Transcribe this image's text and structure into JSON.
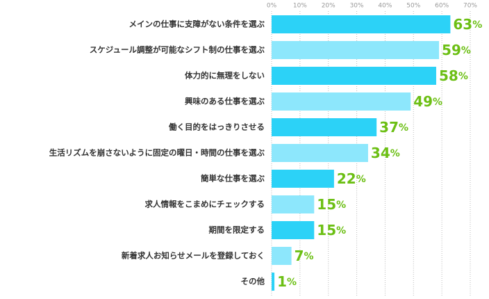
{
  "chart_data": {
    "type": "hbar",
    "categories": [
      "メインの仕事に支障がない条件を選ぶ",
      "スケジュール調整が可能なシフト制の仕事を選ぶ",
      "体力的に無理をしない",
      "興味のある仕事を選ぶ",
      "働く目的をはっきりさせる",
      "生活リズムを崩さないように固定の曜日・時間の仕事を選ぶ",
      "簡単な仕事を選ぶ",
      "求人情報をこまめにチェックする",
      "期間を限定する",
      "新着求人お知らせメールを登録しておく",
      "その他"
    ],
    "values": [
      63,
      59,
      58,
      49,
      37,
      34,
      22,
      15,
      15,
      7,
      1
    ],
    "value_labels": [
      "63%",
      "59%",
      "58%",
      "49%",
      "37%",
      "34%",
      "22%",
      "15%",
      "15%",
      "7%",
      "1%"
    ],
    "colors": [
      "#2cd2f7",
      "#8de7fc",
      "#2cd2f7",
      "#8de7fc",
      "#2cd2f7",
      "#8de7fc",
      "#2cd2f7",
      "#8de7fc",
      "#2cd2f7",
      "#8de7fc",
      "#2cd2f7"
    ],
    "label_color": "#6cbf14",
    "xlim": [
      0,
      70
    ],
    "xticks": [
      {
        "value": 0,
        "label": "0%"
      },
      {
        "value": 10,
        "label": "10%"
      },
      {
        "value": 20,
        "label": "20%"
      },
      {
        "value": 30,
        "label": "30%"
      },
      {
        "value": 40,
        "label": "40%"
      },
      {
        "value": 50,
        "label": "50%"
      },
      {
        "value": 60,
        "label": "60%"
      },
      {
        "value": 70,
        "label": "70%"
      }
    ],
    "grid": true
  }
}
